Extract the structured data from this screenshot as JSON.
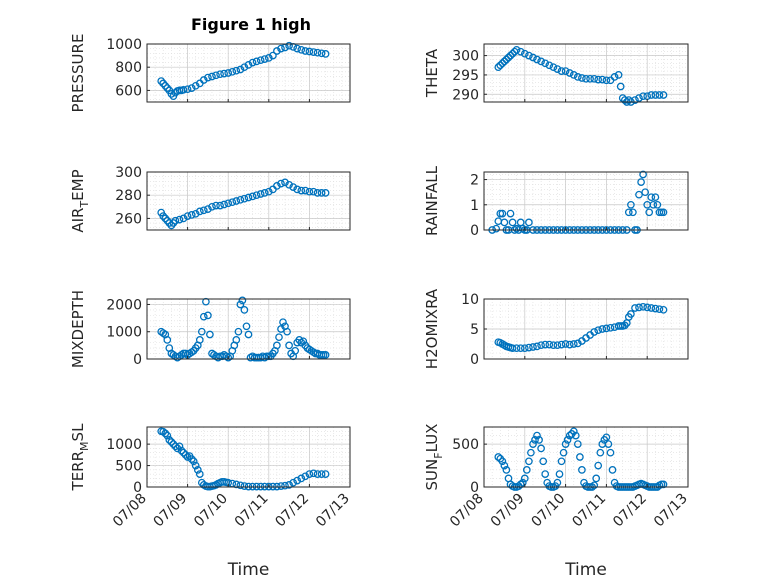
{
  "figure_title": "Figure 1 high",
  "x_label": "Time",
  "x_ticks": [
    "07/08",
    "07/09",
    "07/10",
    "07/11",
    "07/12",
    "07/13"
  ],
  "marker_color": "#0072BD",
  "chart_data": [
    {
      "type": "scatter",
      "title": "Figure 1 high",
      "ylabel": "PRESSURE",
      "xlim": [
        "07/08",
        "07/13"
      ],
      "ylim": [
        500,
        1000
      ],
      "yticks": [
        600,
        800,
        1000
      ],
      "grid": true,
      "series": [
        {
          "x": [
            8.35,
            8.4,
            8.45,
            8.5,
            8.55,
            8.6,
            8.65,
            8.7,
            8.75,
            8.8,
            8.85,
            8.9,
            9.0,
            9.1,
            9.2,
            9.3,
            9.4,
            9.5,
            9.6,
            9.7,
            9.8,
            9.9,
            10.0,
            10.1,
            10.2,
            10.3,
            10.4,
            10.5,
            10.6,
            10.7,
            10.8,
            10.9,
            11.0,
            11.1,
            11.2,
            11.3,
            11.4,
            11.5,
            11.6,
            11.7,
            11.8,
            11.9,
            12.0,
            12.1,
            12.2,
            12.3,
            12.4
          ],
          "y": [
            680,
            660,
            640,
            620,
            600,
            570,
            550,
            580,
            595,
            600,
            600,
            605,
            610,
            620,
            640,
            660,
            690,
            710,
            720,
            730,
            740,
            745,
            750,
            760,
            770,
            780,
            800,
            820,
            840,
            850,
            860,
            870,
            880,
            900,
            940,
            960,
            970,
            985,
            975,
            960,
            950,
            940,
            935,
            930,
            925,
            920,
            915
          ]
        }
      ]
    },
    {
      "type": "scatter",
      "ylabel": "THETA",
      "xlim": [
        "07/08",
        "07/13"
      ],
      "ylim": [
        288,
        303
      ],
      "yticks": [
        290,
        295,
        300
      ],
      "grid": true,
      "series": [
        {
          "x": [
            8.35,
            8.4,
            8.45,
            8.5,
            8.55,
            8.6,
            8.65,
            8.7,
            8.75,
            8.8,
            8.9,
            9.0,
            9.1,
            9.2,
            9.3,
            9.4,
            9.5,
            9.6,
            9.7,
            9.8,
            9.9,
            10.0,
            10.1,
            10.2,
            10.3,
            10.4,
            10.5,
            10.6,
            10.7,
            10.8,
            10.9,
            11.0,
            11.1,
            11.2,
            11.3,
            11.35,
            11.4,
            11.45,
            11.5,
            11.55,
            11.6,
            11.7,
            11.8,
            11.9,
            12.0,
            12.1,
            12.2,
            12.3,
            12.4
          ],
          "y": [
            297,
            297.5,
            298,
            298.5,
            299,
            299.5,
            300,
            300.5,
            301,
            301.5,
            301,
            300.5,
            300,
            299.5,
            299,
            298.5,
            298,
            297.5,
            297,
            296.5,
            296,
            296,
            295.5,
            295,
            294.5,
            294.2,
            294,
            294,
            294,
            293.8,
            293.8,
            293.6,
            293.6,
            294.5,
            295,
            292,
            289,
            288.5,
            288,
            288.5,
            288,
            288.5,
            289,
            289.5,
            289.5,
            289.8,
            289.8,
            289.8,
            289.8
          ]
        }
      ]
    },
    {
      "type": "scatter",
      "ylabel": "AIR_TEMP",
      "xlim": [
        "07/08",
        "07/13"
      ],
      "ylim": [
        250,
        300
      ],
      "yticks": [
        260,
        280,
        300
      ],
      "grid": true,
      "series": [
        {
          "x": [
            8.35,
            8.4,
            8.45,
            8.5,
            8.55,
            8.6,
            8.65,
            8.7,
            8.8,
            8.9,
            9.0,
            9.1,
            9.2,
            9.3,
            9.4,
            9.5,
            9.6,
            9.7,
            9.8,
            9.9,
            10.0,
            10.1,
            10.2,
            10.3,
            10.4,
            10.5,
            10.6,
            10.7,
            10.8,
            10.9,
            11.0,
            11.1,
            11.2,
            11.3,
            11.4,
            11.5,
            11.6,
            11.7,
            11.8,
            11.9,
            12.0,
            12.1,
            12.2,
            12.3,
            12.4
          ],
          "y": [
            265,
            262,
            260,
            258,
            256,
            254,
            256,
            258,
            259,
            260,
            262,
            263,
            264,
            266,
            267,
            268,
            270,
            271,
            271,
            272,
            273,
            274,
            275,
            276,
            277,
            278,
            279,
            280,
            281,
            282,
            283,
            285,
            288,
            290,
            291,
            289,
            287,
            285,
            284,
            284,
            283,
            283,
            282,
            282,
            282
          ]
        }
      ]
    },
    {
      "type": "scatter",
      "ylabel": "RAINFALL",
      "xlim": [
        "07/08",
        "07/13"
      ],
      "ylim": [
        0,
        2.3
      ],
      "yticks": [
        0,
        1,
        2
      ],
      "grid": true,
      "series": [
        {
          "x": [
            8.2,
            8.3,
            8.35,
            8.4,
            8.45,
            8.5,
            8.55,
            8.6,
            8.65,
            8.7,
            8.75,
            8.8,
            8.85,
            8.9,
            8.95,
            9.0,
            9.05,
            9.1,
            9.2,
            9.3,
            9.4,
            9.5,
            9.6,
            9.7,
            9.8,
            9.9,
            10.0,
            10.1,
            10.2,
            10.3,
            10.4,
            10.5,
            10.6,
            10.7,
            10.8,
            10.9,
            11.0,
            11.1,
            11.2,
            11.3,
            11.4,
            11.5,
            11.55,
            11.6,
            11.65,
            11.7,
            11.75,
            11.8,
            11.85,
            11.9,
            11.95,
            12.0,
            12.05,
            12.1,
            12.15,
            12.2,
            12.25,
            12.3,
            12.35,
            12.4
          ],
          "y": [
            0,
            0.05,
            0.35,
            0.65,
            0.65,
            0.3,
            0,
            0,
            0.65,
            0.3,
            0,
            0.05,
            0,
            0.3,
            0.05,
            0,
            0,
            0.3,
            0,
            0,
            0,
            0,
            0,
            0,
            0,
            0,
            0,
            0,
            0,
            0,
            0,
            0,
            0,
            0,
            0,
            0,
            0,
            0,
            0,
            0,
            0,
            0,
            0.7,
            1.0,
            0.7,
            0,
            0,
            1.4,
            1.9,
            2.2,
            1.5,
            1.0,
            0.7,
            1.3,
            1.0,
            1.3,
            1.0,
            0.7,
            0.7,
            0.7
          ]
        }
      ]
    },
    {
      "type": "scatter",
      "ylabel": "MIXDEPTH",
      "xlim": [
        "07/08",
        "07/13"
      ],
      "ylim": [
        0,
        2200
      ],
      "yticks": [
        0,
        1000,
        2000
      ],
      "grid": true,
      "series": [
        {
          "x": [
            8.35,
            8.4,
            8.45,
            8.5,
            8.55,
            8.6,
            8.65,
            8.7,
            8.75,
            8.8,
            8.85,
            8.9,
            8.95,
            9.0,
            9.05,
            9.1,
            9.15,
            9.2,
            9.25,
            9.3,
            9.35,
            9.4,
            9.45,
            9.5,
            9.55,
            9.6,
            9.65,
            9.7,
            9.75,
            9.8,
            9.85,
            9.9,
            9.95,
            10.0,
            10.05,
            10.1,
            10.15,
            10.2,
            10.25,
            10.3,
            10.35,
            10.4,
            10.45,
            10.5,
            10.55,
            10.6,
            10.65,
            10.7,
            10.75,
            10.8,
            10.85,
            10.9,
            10.95,
            11.0,
            11.05,
            11.1,
            11.15,
            11.2,
            11.25,
            11.3,
            11.35,
            11.4,
            11.45,
            11.5,
            11.55,
            11.6,
            11.65,
            11.7,
            11.75,
            11.8,
            11.85,
            11.9,
            11.95,
            12.0,
            12.05,
            12.1,
            12.15,
            12.2,
            12.25,
            12.3,
            12.35,
            12.4
          ],
          "y": [
            1000,
            950,
            900,
            700,
            400,
            200,
            150,
            100,
            50,
            100,
            150,
            200,
            200,
            150,
            200,
            250,
            300,
            400,
            500,
            700,
            1000,
            1550,
            2100,
            1600,
            900,
            200,
            150,
            100,
            50,
            100,
            100,
            150,
            100,
            50,
            100,
            300,
            500,
            700,
            1000,
            2000,
            2150,
            1800,
            1200,
            900,
            50,
            100,
            50,
            50,
            50,
            50,
            100,
            50,
            100,
            100,
            100,
            200,
            300,
            500,
            800,
            1100,
            1350,
            1200,
            1000,
            500,
            200,
            100,
            300,
            600,
            700,
            600,
            650,
            500,
            400,
            350,
            300,
            250,
            200,
            200,
            150,
            150,
            150,
            150
          ]
        }
      ]
    },
    {
      "type": "scatter",
      "ylabel": "H2OMIXRA",
      "xlim": [
        "07/08",
        "07/13"
      ],
      "ylim": [
        0,
        10
      ],
      "yticks": [
        0,
        5,
        10
      ],
      "grid": true,
      "series": [
        {
          "x": [
            8.35,
            8.4,
            8.45,
            8.5,
            8.55,
            8.6,
            8.65,
            8.7,
            8.8,
            8.9,
            9.0,
            9.1,
            9.2,
            9.3,
            9.4,
            9.5,
            9.6,
            9.7,
            9.8,
            9.9,
            10.0,
            10.1,
            10.2,
            10.3,
            10.4,
            10.5,
            10.6,
            10.7,
            10.8,
            10.9,
            11.0,
            11.1,
            11.2,
            11.3,
            11.35,
            11.4,
            11.45,
            11.5,
            11.55,
            11.6,
            11.7,
            11.8,
            11.9,
            12.0,
            12.1,
            12.2,
            12.3,
            12.4
          ],
          "y": [
            2.8,
            2.7,
            2.5,
            2.3,
            2.1,
            2.0,
            1.9,
            1.8,
            1.8,
            1.8,
            1.8,
            1.9,
            2.0,
            2.1,
            2.3,
            2.4,
            2.4,
            2.3,
            2.3,
            2.4,
            2.5,
            2.4,
            2.5,
            2.6,
            3.0,
            3.5,
            4.0,
            4.5,
            4.8,
            5.0,
            5.1,
            5.2,
            5.3,
            5.5,
            5.5,
            5.5,
            5.6,
            6.0,
            7.0,
            7.5,
            8.5,
            8.6,
            8.7,
            8.6,
            8.5,
            8.4,
            8.3,
            8.2
          ]
        }
      ]
    },
    {
      "type": "scatter",
      "ylabel": "TERR_MSL",
      "xlim": [
        "07/08",
        "07/13"
      ],
      "ylim": [
        0,
        1400
      ],
      "yticks": [
        0,
        500,
        1000
      ],
      "grid": true,
      "series": [
        {
          "x": [
            8.35,
            8.4,
            8.45,
            8.5,
            8.55,
            8.6,
            8.65,
            8.7,
            8.75,
            8.8,
            8.85,
            8.9,
            8.95,
            9.0,
            9.05,
            9.1,
            9.15,
            9.2,
            9.25,
            9.3,
            9.35,
            9.4,
            9.45,
            9.5,
            9.55,
            9.6,
            9.65,
            9.7,
            9.75,
            9.8,
            9.85,
            9.9,
            9.95,
            10.0,
            10.1,
            10.2,
            10.3,
            10.4,
            10.5,
            10.6,
            10.7,
            10.8,
            10.9,
            11.0,
            11.1,
            11.2,
            11.3,
            11.4,
            11.5,
            11.6,
            11.7,
            11.8,
            11.9,
            12.0,
            12.1,
            12.2,
            12.3,
            12.4
          ],
          "y": [
            1300,
            1290,
            1250,
            1200,
            1100,
            1050,
            1000,
            950,
            900,
            950,
            850,
            800,
            750,
            700,
            720,
            650,
            600,
            500,
            400,
            300,
            100,
            50,
            20,
            10,
            10,
            20,
            30,
            50,
            80,
            100,
            120,
            120,
            110,
            100,
            80,
            60,
            40,
            20,
            10,
            10,
            10,
            10,
            10,
            10,
            10,
            10,
            20,
            30,
            50,
            100,
            150,
            200,
            250,
            300,
            320,
            300,
            300,
            300
          ]
        }
      ]
    },
    {
      "type": "scatter",
      "ylabel": "SUN_FLUX",
      "xlim": [
        "07/08",
        "07/13"
      ],
      "ylim": [
        0,
        700
      ],
      "yticks": [
        0,
        500
      ],
      "grid": true,
      "series": [
        {
          "x": [
            8.35,
            8.4,
            8.45,
            8.5,
            8.55,
            8.6,
            8.65,
            8.7,
            8.75,
            8.8,
            8.85,
            8.9,
            8.95,
            9.0,
            9.05,
            9.1,
            9.15,
            9.2,
            9.25,
            9.3,
            9.35,
            9.4,
            9.45,
            9.5,
            9.55,
            9.6,
            9.65,
            9.7,
            9.75,
            9.8,
            9.85,
            9.9,
            9.95,
            10.0,
            10.05,
            10.1,
            10.15,
            10.2,
            10.25,
            10.3,
            10.35,
            10.4,
            10.45,
            10.5,
            10.55,
            10.6,
            10.65,
            10.7,
            10.75,
            10.8,
            10.85,
            10.9,
            10.95,
            11.0,
            11.05,
            11.1,
            11.15,
            11.2,
            11.25,
            11.3,
            11.35,
            11.4,
            11.45,
            11.5,
            11.55,
            11.6,
            11.65,
            11.7,
            11.75,
            11.8,
            11.85,
            11.9,
            11.95,
            12.0,
            12.05,
            12.1,
            12.15,
            12.2,
            12.25,
            12.3,
            12.35,
            12.4
          ],
          "y": [
            350,
            330,
            300,
            250,
            200,
            100,
            30,
            10,
            0,
            0,
            10,
            30,
            50,
            100,
            200,
            300,
            400,
            500,
            550,
            600,
            550,
            450,
            300,
            150,
            50,
            10,
            0,
            0,
            10,
            50,
            150,
            300,
            400,
            500,
            550,
            600,
            620,
            650,
            600,
            500,
            350,
            200,
            50,
            10,
            0,
            0,
            0,
            20,
            100,
            250,
            400,
            500,
            550,
            580,
            500,
            400,
            200,
            50,
            10,
            0,
            0,
            0,
            0,
            0,
            0,
            0,
            0,
            10,
            20,
            30,
            40,
            30,
            20,
            10,
            0,
            0,
            0,
            0,
            0,
            20,
            30,
            30
          ]
        }
      ]
    }
  ]
}
